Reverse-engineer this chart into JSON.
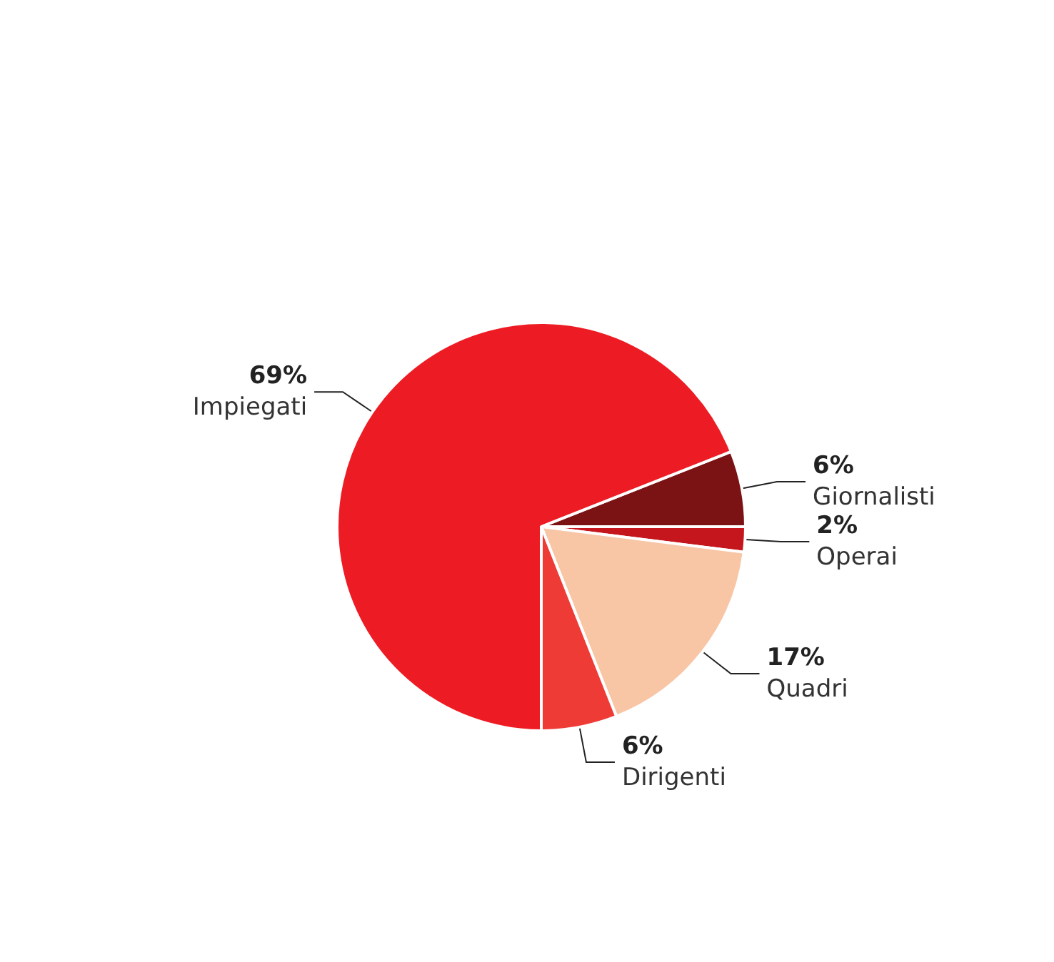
{
  "chart_data": {
    "type": "pie",
    "categories": [
      "Giornalisti",
      "Operai",
      "Quadri",
      "Dirigenti",
      "Impiegati"
    ],
    "values": [
      6,
      2,
      17,
      6,
      69
    ],
    "colors": [
      "#7b1315",
      "#c4161c",
      "#f8c5a5",
      "#ef3b36",
      "#ed1c24"
    ],
    "value_labels": [
      "6%",
      "2%",
      "17%",
      "6%",
      "69%"
    ],
    "legend": false
  }
}
